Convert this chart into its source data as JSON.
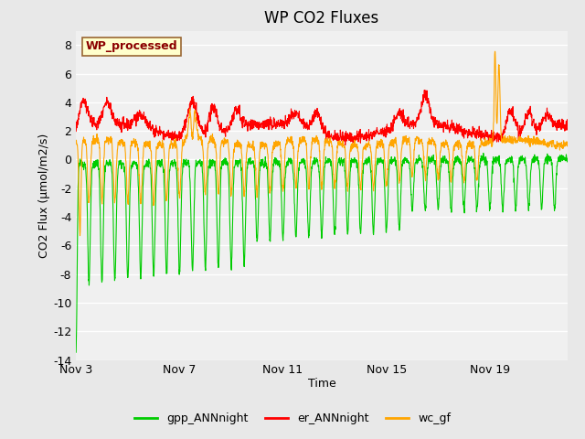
{
  "title": "WP CO2 Fluxes",
  "xlabel": "Time",
  "ylabel": "CO2 Flux (μmol/m2/s)",
  "ylim": [
    -14,
    9
  ],
  "yticks": [
    -14,
    -12,
    -10,
    -8,
    -6,
    -4,
    -2,
    0,
    2,
    4,
    6,
    8
  ],
  "xtick_labels": [
    "Nov 3",
    "Nov 7",
    "Nov 11",
    "Nov 15",
    "Nov 19"
  ],
  "xtick_positions": [
    0,
    4,
    8,
    12,
    16
  ],
  "xlim": [
    0,
    19
  ],
  "watermark_text": "WP_processed",
  "watermark_color": "#8B0000",
  "watermark_bg": "#FFFFCC",
  "watermark_border": "#996633",
  "colors": {
    "gpp": "#00CC00",
    "er": "#FF0000",
    "wc": "#FFA500"
  },
  "legend_labels": [
    "gpp_ANNnight",
    "er_ANNnight",
    "wc_gf"
  ],
  "background_color": "#E8E8E8",
  "plot_bg_color": "#F0F0F0",
  "grid_color": "#FFFFFF",
  "n_points": 2000,
  "time_start": 0,
  "time_end": 19
}
